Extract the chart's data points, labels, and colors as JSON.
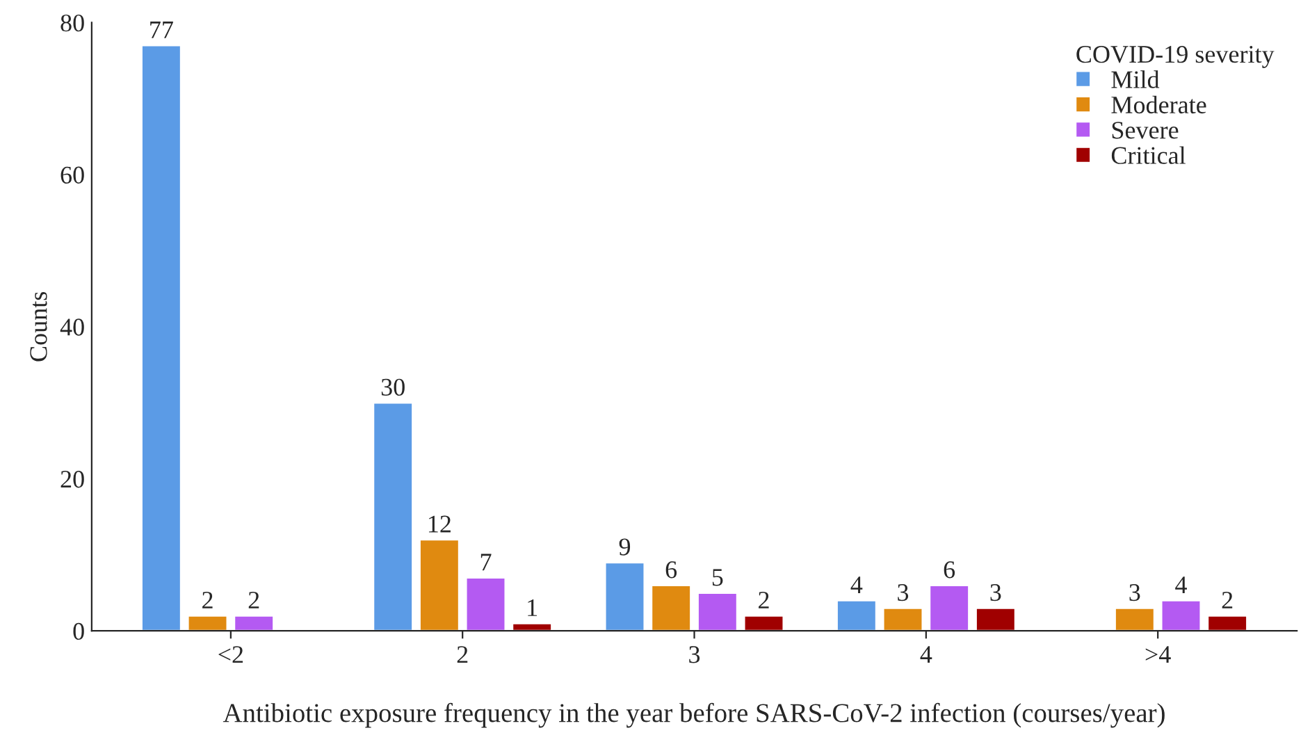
{
  "chart_data": {
    "type": "bar",
    "xlabel": "Antibiotic exposure frequency in the year before SARS-CoV-2 infection (courses/year)",
    "ylabel": "Counts",
    "legend_title": "COVID-19 severity",
    "categories": [
      "<2",
      "2",
      "3",
      "4",
      ">4"
    ],
    "series": [
      {
        "name": "Mild",
        "color": "#5b9be6",
        "values": [
          77,
          30,
          9,
          4,
          null
        ]
      },
      {
        "name": "Moderate",
        "color": "#e08a10",
        "values": [
          2,
          12,
          6,
          3,
          3
        ]
      },
      {
        "name": "Severe",
        "color": "#b45af2",
        "values": [
          2,
          7,
          5,
          6,
          4
        ]
      },
      {
        "name": "Critical",
        "color": "#a00000",
        "values": [
          null,
          1,
          2,
          3,
          2
        ]
      }
    ],
    "ylim": [
      0,
      80
    ],
    "yticks": [
      0,
      20,
      40,
      60,
      80
    ],
    "grid": false,
    "legend": "top right",
    "data_labels": true
  }
}
